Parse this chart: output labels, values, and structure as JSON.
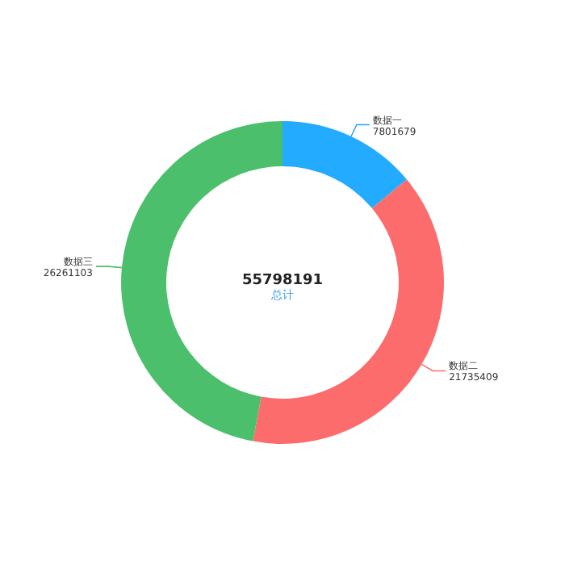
{
  "chart_data": {
    "type": "donut",
    "categories": [
      "数据一",
      "数据二",
      "数据三"
    ],
    "values": [
      7801679,
      21735409,
      26261103
    ],
    "colors": [
      "#23abff",
      "#fd6c6c",
      "#4bbf6b"
    ],
    "data_labels": true,
    "annotations": [
      "55798191",
      "总计"
    ]
  }
}
